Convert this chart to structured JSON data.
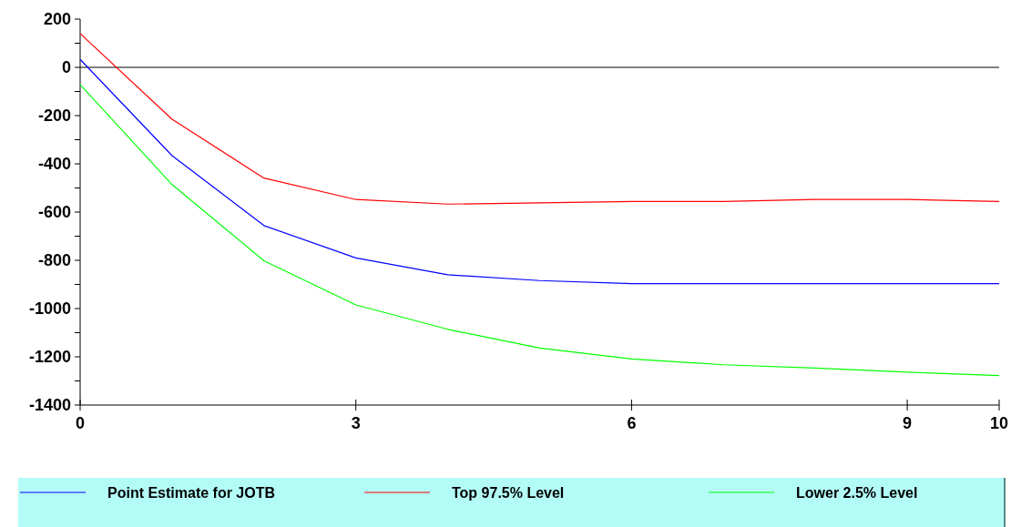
{
  "chart_data": {
    "type": "line",
    "x": [
      0,
      1,
      2,
      3,
      4,
      5,
      6,
      7,
      8,
      9,
      10
    ],
    "series": [
      {
        "name": "Point Estimate for JOTB",
        "color": "#0000ff",
        "values": [
          33,
          -366,
          -656,
          -790,
          -860,
          -884,
          -897,
          -897,
          -897,
          -897,
          -897
        ]
      },
      {
        "name": "Top 97.5% Level",
        "color": "#ff0000",
        "values": [
          140,
          -215,
          -459,
          -548,
          -567,
          -562,
          -556,
          -556,
          -548,
          -548,
          -556
        ]
      },
      {
        "name": "Lower 2.5% Level",
        "color": "#00ff00",
        "values": [
          -71,
          -486,
          -802,
          -985,
          -1086,
          -1164,
          -1209,
          -1233,
          -1247,
          -1264,
          -1278
        ]
      }
    ],
    "xlim": [
      0,
      10
    ],
    "xticks": [
      0,
      3,
      6,
      9,
      10
    ],
    "ylim": [
      -1400,
      200
    ],
    "yticks": [
      200,
      {
        "value": 100,
        "label": null
      },
      0,
      {
        "value": -100,
        "label": null
      },
      -200,
      {
        "value": -300,
        "label": null
      },
      -400,
      {
        "value": -500,
        "label": null
      },
      -600,
      {
        "value": -700,
        "label": null
      },
      -800,
      {
        "value": -900,
        "label": null
      },
      -1000,
      {
        "value": -1100,
        "label": null
      },
      -1200,
      {
        "value": -1300,
        "label": null
      },
      -1400
    ],
    "ref_lines": [
      {
        "axis": "y",
        "value": 0,
        "color": "#000000"
      }
    ],
    "legend": "bottom",
    "marker": "none",
    "line_style": "solid",
    "grid": false
  }
}
